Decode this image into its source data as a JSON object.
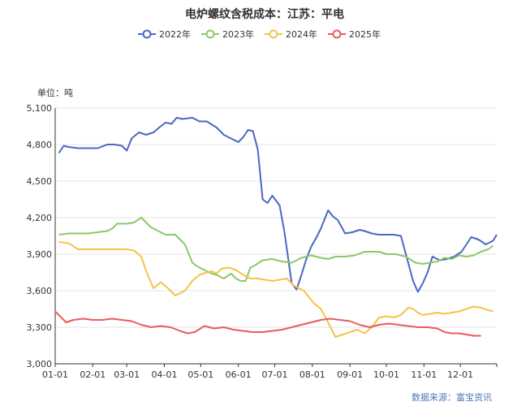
{
  "chart_data": {
    "type": "line",
    "title": "电炉螺纹含税成本：江苏：平电",
    "unit_label": "单位：吨",
    "source": "数据来源：富宝资讯",
    "ylim": [
      3000,
      5100
    ],
    "yticks": [
      "3,000",
      "3,300",
      "3,600",
      "3,900",
      "4,200",
      "4,500",
      "4,800",
      "5,100"
    ],
    "ytick_values": [
      3000,
      3300,
      3600,
      3900,
      4200,
      4500,
      4800,
      5100
    ],
    "xticks": [
      "01-01",
      "02-01",
      "03-01",
      "04-01",
      "05-01",
      "06-01",
      "07-01",
      "08-01",
      "09-01",
      "10-01",
      "11-01",
      "12-01"
    ],
    "xtick_values": [
      1,
      32,
      60,
      91,
      121,
      152,
      182,
      213,
      244,
      274,
      305,
      335
    ],
    "xlim": [
      1,
      365
    ],
    "grid": true,
    "legend_position": "top-center",
    "series": [
      {
        "name": "2022年",
        "color": "#4a67c4",
        "x": [
          4,
          8,
          12,
          20,
          28,
          36,
          44,
          50,
          56,
          60,
          64,
          70,
          76,
          82,
          88,
          92,
          97,
          101,
          106,
          114,
          120,
          126,
          134,
          140,
          148,
          152,
          156,
          160,
          164,
          168,
          172,
          176,
          180,
          186,
          190,
          196,
          200,
          204,
          208,
          212,
          216,
          220,
          226,
          230,
          234,
          240,
          246,
          252,
          256,
          262,
          268,
          274,
          280,
          286,
          292,
          296,
          300,
          304,
          308,
          312,
          318,
          324,
          330,
          336,
          344,
          350,
          356,
          362,
          365
        ],
        "values": [
          4730,
          4790,
          4780,
          4770,
          4770,
          4770,
          4800,
          4800,
          4790,
          4750,
          4850,
          4900,
          4880,
          4900,
          4950,
          4980,
          4970,
          5020,
          5010,
          5020,
          4990,
          4990,
          4940,
          4880,
          4840,
          4820,
          4860,
          4920,
          4910,
          4760,
          4350,
          4320,
          4380,
          4300,
          4080,
          3660,
          3610,
          3730,
          3860,
          3960,
          4030,
          4110,
          4260,
          4210,
          4180,
          4070,
          4080,
          4100,
          4090,
          4070,
          4060,
          4060,
          4060,
          4050,
          3830,
          3680,
          3590,
          3660,
          3750,
          3880,
          3850,
          3860,
          3880,
          3920,
          4040,
          4020,
          3980,
          4010,
          4060
        ]
      },
      {
        "name": "2023年",
        "color": "#8ac967",
        "x": [
          4,
          12,
          20,
          28,
          36,
          44,
          48,
          52,
          60,
          66,
          72,
          76,
          80,
          86,
          92,
          100,
          104,
          108,
          114,
          118,
          122,
          126,
          130,
          134,
          140,
          146,
          150,
          154,
          158,
          162,
          166,
          172,
          180,
          188,
          196,
          204,
          212,
          220,
          226,
          232,
          240,
          248,
          256,
          262,
          268,
          274,
          282,
          290,
          298,
          304,
          310,
          316,
          322,
          328,
          334,
          340,
          346,
          352,
          358,
          362
        ],
        "values": [
          4060,
          4070,
          4070,
          4070,
          4080,
          4090,
          4110,
          4150,
          4150,
          4160,
          4200,
          4160,
          4120,
          4090,
          4060,
          4060,
          4020,
          3980,
          3830,
          3800,
          3780,
          3760,
          3740,
          3730,
          3700,
          3740,
          3700,
          3680,
          3680,
          3790,
          3810,
          3850,
          3860,
          3840,
          3830,
          3870,
          3890,
          3870,
          3860,
          3880,
          3880,
          3890,
          3920,
          3920,
          3920,
          3900,
          3900,
          3880,
          3830,
          3820,
          3830,
          3840,
          3870,
          3860,
          3890,
          3880,
          3890,
          3920,
          3940,
          3970
        ]
      },
      {
        "name": "2024年",
        "color": "#f3c44a",
        "x": [
          4,
          12,
          20,
          28,
          36,
          44,
          52,
          60,
          66,
          72,
          76,
          82,
          88,
          94,
          100,
          108,
          114,
          120,
          126,
          130,
          134,
          138,
          144,
          150,
          156,
          162,
          168,
          174,
          180,
          186,
          192,
          198,
          206,
          214,
          220,
          226,
          232,
          238,
          244,
          250,
          256,
          262,
          268,
          274,
          280,
          286,
          292,
          296,
          300,
          304,
          310,
          316,
          322,
          328,
          334,
          340,
          346,
          352,
          358,
          362
        ],
        "values": [
          4000,
          3990,
          3940,
          3940,
          3940,
          3940,
          3940,
          3940,
          3930,
          3880,
          3760,
          3620,
          3670,
          3620,
          3560,
          3600,
          3680,
          3730,
          3750,
          3760,
          3740,
          3780,
          3790,
          3770,
          3730,
          3700,
          3700,
          3690,
          3680,
          3690,
          3700,
          3640,
          3600,
          3500,
          3450,
          3340,
          3220,
          3240,
          3260,
          3280,
          3250,
          3300,
          3380,
          3390,
          3380,
          3400,
          3460,
          3450,
          3420,
          3400,
          3410,
          3420,
          3410,
          3420,
          3430,
          3450,
          3470,
          3460,
          3440,
          3430
        ]
      },
      {
        "name": "2025年",
        "color": "#e85b5b",
        "x": [
          1,
          6,
          10,
          16,
          24,
          32,
          40,
          48,
          56,
          64,
          72,
          80,
          88,
          96,
          104,
          110,
          116,
          124,
          132,
          140,
          148,
          156,
          164,
          172,
          180,
          188,
          196,
          204,
          212,
          220,
          228,
          236,
          244,
          252,
          260,
          268,
          276,
          284,
          292,
          300,
          308,
          316,
          322,
          328,
          334,
          340,
          346,
          352
        ],
        "values": [
          3430,
          3380,
          3340,
          3360,
          3370,
          3360,
          3360,
          3370,
          3360,
          3350,
          3320,
          3300,
          3310,
          3300,
          3270,
          3250,
          3260,
          3310,
          3290,
          3300,
          3280,
          3270,
          3260,
          3260,
          3270,
          3280,
          3300,
          3320,
          3340,
          3360,
          3370,
          3360,
          3350,
          3320,
          3300,
          3320,
          3330,
          3320,
          3310,
          3300,
          3300,
          3290,
          3260,
          3250,
          3250,
          3240,
          3230,
          3230
        ]
      }
    ]
  }
}
